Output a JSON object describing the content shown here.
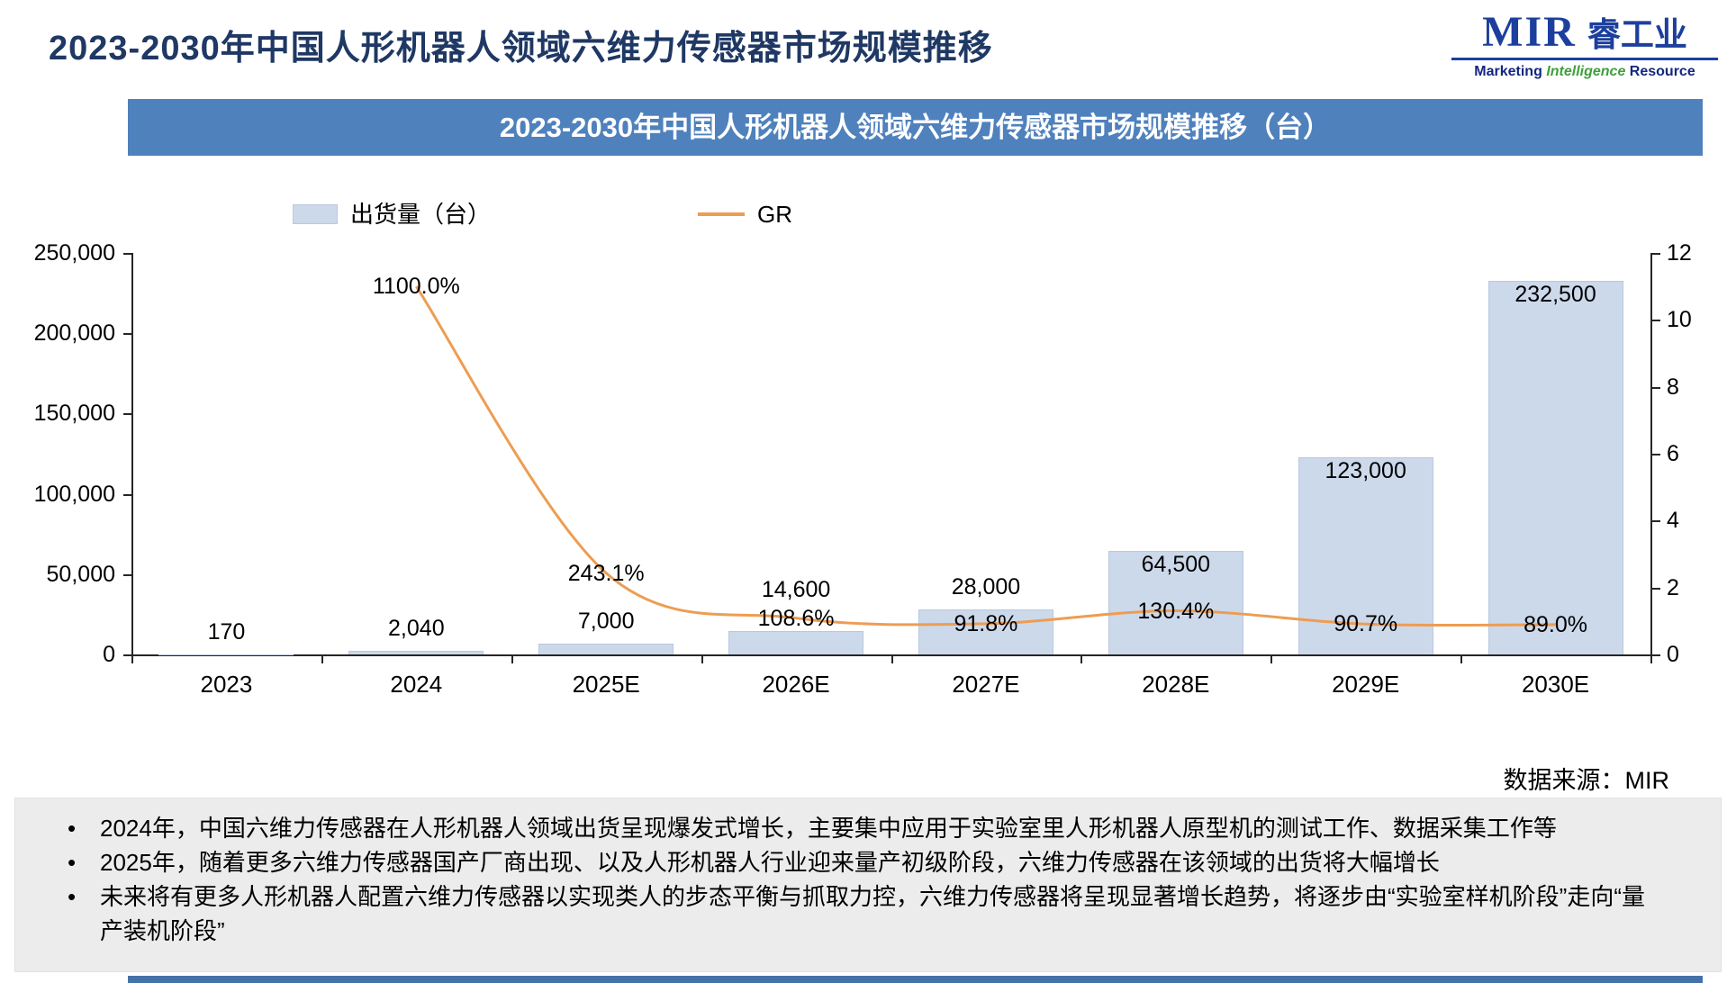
{
  "page": {
    "title": "2023-2030年中国人形机器人领域六维力传感器市场规模推移",
    "source_note": "数据来源：MIR"
  },
  "logo": {
    "name": "MIR",
    "cn": "睿工业",
    "tagline_1": "Marketing",
    "tagline_2": "Intelligence",
    "tagline_3": "Resource",
    "colors": {
      "blue": "#1c3f9e",
      "green": "#3fa03c"
    }
  },
  "banner": {
    "title": "2023-2030年中国人形机器人领域六维力传感器市场规模推移（台）",
    "bg": "#4f81bd"
  },
  "legend": {
    "bar_label": "出货量（台）",
    "line_label": "GR"
  },
  "chart_data": {
    "type": "bar",
    "subtype": "bar+line-combo",
    "title": "2023-2030年中国人形机器人领域六维力传感器市场规模推移（台）",
    "categories": [
      "2023",
      "2024",
      "2025E",
      "2026E",
      "2027E",
      "2028E",
      "2029E",
      "2030E"
    ],
    "series": [
      {
        "name": "出货量（台）",
        "type": "bar",
        "axis": "left",
        "values": [
          170,
          2040,
          7000,
          14600,
          28000,
          64500,
          123000,
          232500
        ],
        "labels": [
          "170",
          "2,040",
          "7,000",
          "14,600",
          "28,000",
          "64,500",
          "123,000",
          "232,500"
        ]
      },
      {
        "name": "GR",
        "type": "line",
        "axis": "right",
        "values": [
          null,
          11.0,
          2.431,
          1.086,
          0.918,
          1.304,
          0.907,
          0.89
        ],
        "labels": [
          null,
          "1100.0%",
          "243.1%",
          "108.6%",
          "91.8%",
          "130.4%",
          "90.7%",
          "89.0%"
        ]
      }
    ],
    "left_axis": {
      "min": 0,
      "max": 250000,
      "step": 50000,
      "tick_labels": [
        "0",
        "50,000",
        "100,000",
        "150,000",
        "200,000",
        "250,000"
      ]
    },
    "right_axis": {
      "min": 0,
      "max": 12,
      "step": 2,
      "tick_labels": [
        "0",
        "2",
        "4",
        "6",
        "8",
        "10",
        "12"
      ]
    },
    "bar_color": "#ccd9eb",
    "line_color": "#ed9d52",
    "grid": false,
    "legend_position": "top"
  },
  "notes": {
    "bullets": [
      "2024年，中国六维力传感器在人形机器人领域出货呈现爆发式增长，主要集中应用于实验室里人形机器人原型机的测试工作、数据采集工作等",
      "2025年，随着更多六维力传感器国产厂商出现、以及人形机器人行业迎来量产初级阶段，六维力传感器在该领域的出货将大幅增长",
      "未来将有更多人形机器人配置六维力传感器以实现类人的步态平衡与抓取力控，六维力传感器将呈现显著增长趋势，将逐步由“实验室样机阶段”走向“量产装机阶段”"
    ]
  }
}
